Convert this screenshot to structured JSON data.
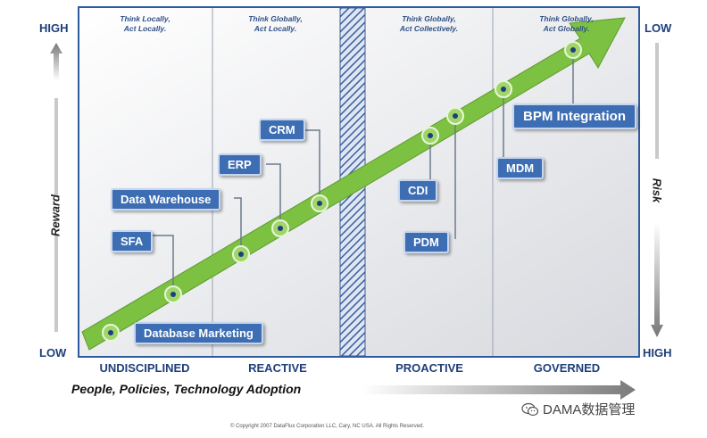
{
  "reward_axis": {
    "top": "HIGH",
    "bottom": "LOW",
    "label": "Reward"
  },
  "risk_axis": {
    "top": "LOW",
    "bottom": "HIGH",
    "label": "Risk"
  },
  "stages": [
    {
      "label": "UNDISCIPLINED",
      "motto": "Think Locally,\nAct Locally."
    },
    {
      "label": "REACTIVE",
      "motto": "Think Globally,\nAct Locally."
    },
    {
      "label": "PROACTIVE",
      "motto": "Think Globally,\nAct Collectively."
    },
    {
      "label": "GOVERNED",
      "motto": "Think Globally,\nAct Globally."
    }
  ],
  "milestones": [
    {
      "label": "Database Marketing"
    },
    {
      "label": "SFA"
    },
    {
      "label": "Data Warehouse"
    },
    {
      "label": "ERP"
    },
    {
      "label": "CRM"
    },
    {
      "label": "CDI"
    },
    {
      "label": "PDM"
    },
    {
      "label": "MDM"
    },
    {
      "label": "BPM Integration"
    }
  ],
  "x_axis_label": "People, Policies, Technology Adoption",
  "copyright": "© Copyright 2007 DataFlux Corporation LLC, Cary, NC USA. All Rights Reserved.",
  "watermark": "DAMA数据管理",
  "colors": {
    "arrow": "#7dc142",
    "box": "#3d6db3",
    "panel_border": "#2d5aa0",
    "text_blue": "#1f3f7a"
  }
}
